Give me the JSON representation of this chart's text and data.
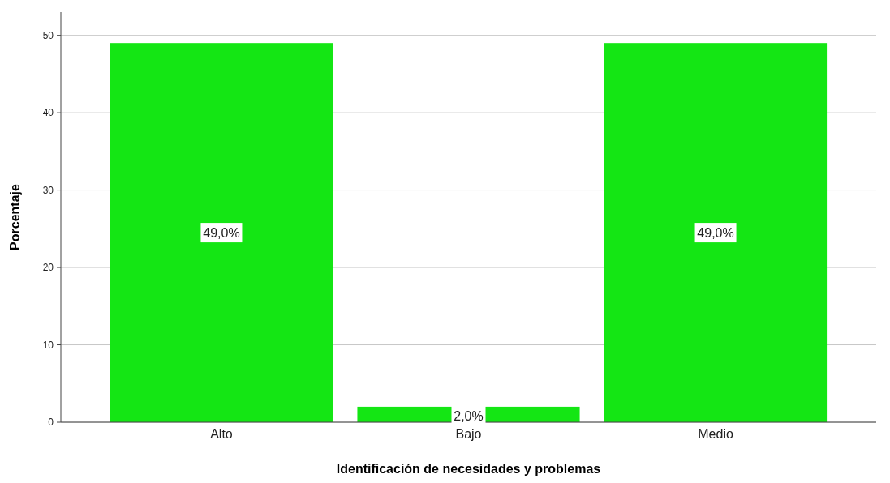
{
  "chart_data": {
    "type": "bar",
    "xlabel": "Identificación de necesidades y problemas",
    "ylabel": "Porcentaje",
    "categories": [
      "Alto",
      "Bajo",
      "Medio"
    ],
    "values": [
      49.0,
      2.0,
      49.0
    ],
    "value_labels": [
      "49,0%",
      "2,0%",
      "49,0%"
    ],
    "color": "#14e614",
    "ylim": [
      0,
      53
    ],
    "yticks": [
      0,
      10,
      20,
      30,
      40,
      50
    ],
    "grid": "y"
  }
}
